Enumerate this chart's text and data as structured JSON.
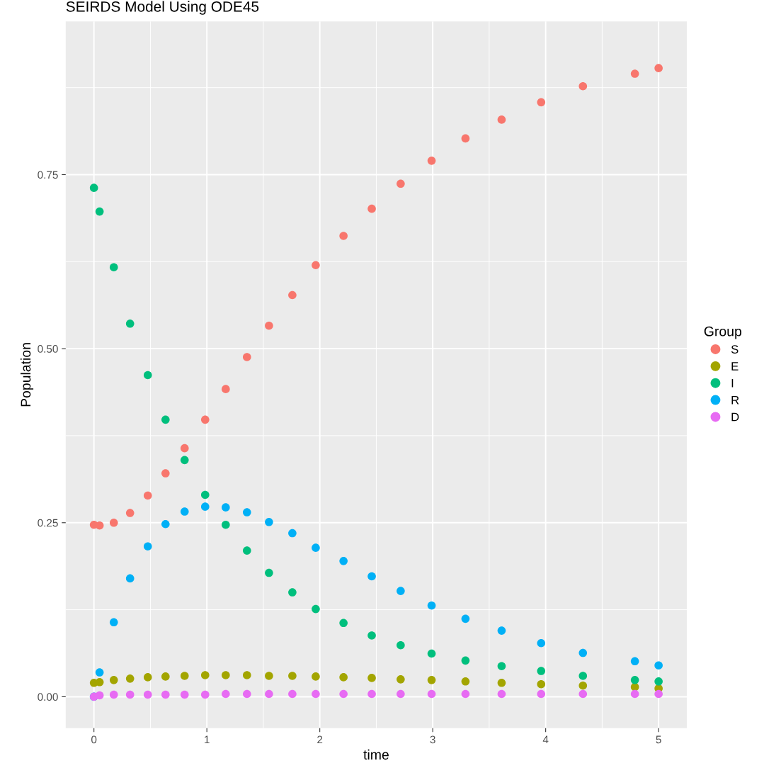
{
  "chart_data": {
    "type": "scatter",
    "title": "SEIRDS Model Using ODE45",
    "xlabel": "time",
    "ylabel": "Population",
    "legend_title": "Group",
    "legend": "right",
    "grid": true,
    "marker": "circle",
    "x": [
      0,
      0.05,
      0.176,
      0.32,
      0.477,
      0.634,
      0.803,
      0.985,
      1.167,
      1.355,
      1.55,
      1.757,
      1.964,
      2.21,
      2.46,
      2.716,
      2.99,
      3.29,
      3.61,
      3.96,
      4.33,
      4.79,
      5.0
    ],
    "xlim": [
      -0.25,
      5.25
    ],
    "xticks": [
      0,
      1,
      2,
      3,
      4,
      5
    ],
    "ylim": [
      -0.045,
      0.97
    ],
    "yticks": [
      {
        "value": 0,
        "label": "0.00"
      },
      {
        "value": 0.25,
        "label": "0.25"
      },
      {
        "value": 0.5,
        "label": "0.50"
      },
      {
        "value": 0.75,
        "label": "0.75"
      }
    ],
    "series": [
      {
        "name": "S",
        "color": "#f8766d",
        "values": [
          0.247,
          0.246,
          0.25,
          0.264,
          0.289,
          0.321,
          0.357,
          0.398,
          0.442,
          0.488,
          0.533,
          0.577,
          0.62,
          0.662,
          0.701,
          0.737,
          0.77,
          0.802,
          0.829,
          0.854,
          0.877,
          0.895,
          0.903
        ]
      },
      {
        "name": "E",
        "color": "#a3a500",
        "values": [
          0.02,
          0.021,
          0.024,
          0.026,
          0.028,
          0.029,
          0.03,
          0.031,
          0.031,
          0.031,
          0.03,
          0.03,
          0.029,
          0.028,
          0.027,
          0.025,
          0.024,
          0.022,
          0.02,
          0.018,
          0.016,
          0.014,
          0.012
        ]
      },
      {
        "name": "I",
        "color": "#00bf7d",
        "values": [
          0.731,
          0.697,
          0.617,
          0.536,
          0.462,
          0.398,
          0.34,
          0.29,
          0.247,
          0.21,
          0.178,
          0.15,
          0.126,
          0.106,
          0.088,
          0.074,
          0.062,
          0.052,
          0.044,
          0.037,
          0.03,
          0.024,
          0.022
        ]
      },
      {
        "name": "R",
        "color": "#00b0f6",
        "values": [
          0,
          0.035,
          0.107,
          0.17,
          0.216,
          0.248,
          0.266,
          0.273,
          0.272,
          0.265,
          0.251,
          0.235,
          0.214,
          0.195,
          0.173,
          0.152,
          0.131,
          0.112,
          0.095,
          0.077,
          0.063,
          0.051,
          0.045
        ]
      },
      {
        "name": "D",
        "color": "#e76bf3",
        "values": [
          0,
          0.002,
          0.003,
          0.003,
          0.003,
          0.003,
          0.003,
          0.003,
          0.004,
          0.004,
          0.004,
          0.004,
          0.004,
          0.004,
          0.004,
          0.004,
          0.004,
          0.004,
          0.004,
          0.004,
          0.004,
          0.004,
          0.004
        ]
      }
    ]
  }
}
